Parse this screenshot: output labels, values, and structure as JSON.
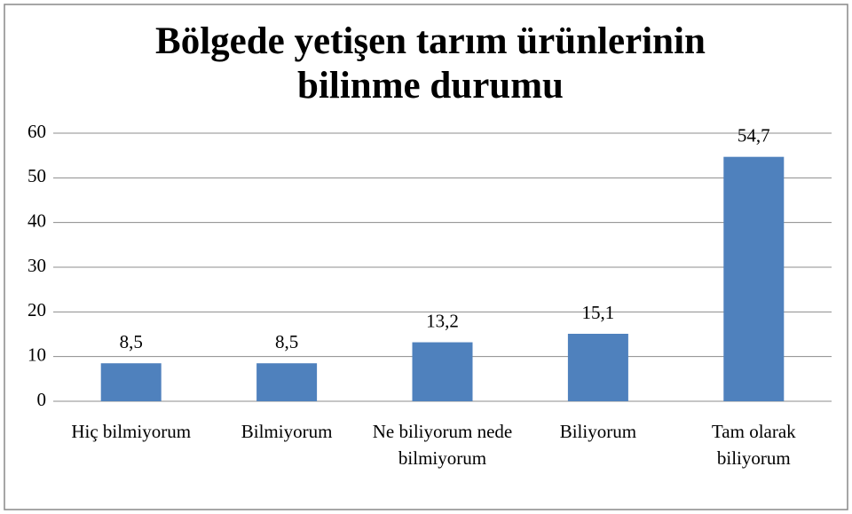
{
  "chart_data": {
    "type": "bar",
    "title": [
      "Bölgede yetişen tarım ürünlerinin",
      "bilinme durumu"
    ],
    "categories": [
      "Hiç bilmiyorum",
      "Bilmiyorum",
      "Ne biliyorum nede bilmiyorum",
      "Biliyorum",
      "Tam olarak biliyorum"
    ],
    "values": [
      8.5,
      8.5,
      13.2,
      15.1,
      54.7
    ],
    "value_labels": [
      "8,5",
      "8,5",
      "13,2",
      "15,1",
      "54,7"
    ],
    "color": "#4f81bd",
    "ylim": [
      0,
      60
    ],
    "yticks": [
      0,
      10,
      20,
      30,
      40,
      50,
      60
    ],
    "grid": true
  }
}
